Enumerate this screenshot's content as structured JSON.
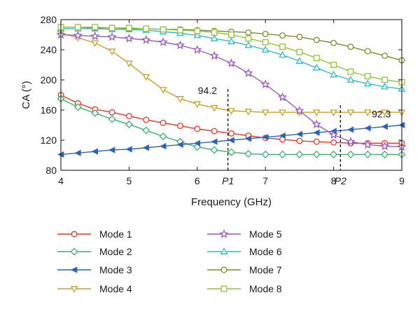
{
  "chart_data": {
    "type": "line",
    "xlabel": "Frequency (GHz)",
    "ylabel": "CA (°)",
    "xlim": [
      4,
      9
    ],
    "ylim": [
      80,
      280
    ],
    "xticks": [
      4,
      5,
      6,
      7,
      8,
      9
    ],
    "yticks": [
      80,
      120,
      160,
      200,
      240,
      280
    ],
    "grid": false,
    "legend_position": "bottom, two columns",
    "annotations": [
      {
        "text": "94.2",
        "x": 6.15,
        "y": 186
      },
      {
        "text": "92.3",
        "x": 8.7,
        "y": 155
      }
    ],
    "vlines": [
      {
        "label": "P1",
        "x": 6.45
      },
      {
        "label": "P2",
        "x": 8.1
      }
    ],
    "x": [
      4.0,
      4.25,
      4.5,
      4.75,
      5.0,
      5.25,
      5.5,
      5.75,
      6.0,
      6.25,
      6.5,
      6.75,
      7.0,
      7.25,
      7.5,
      7.75,
      8.0,
      8.25,
      8.5,
      8.75,
      9.0
    ],
    "series": [
      {
        "name": "Mode 1",
        "color": "#e8372b",
        "marker": "circle",
        "values": [
          180,
          169,
          161,
          157,
          152,
          147,
          143,
          139,
          135,
          132,
          129,
          126,
          123,
          121,
          119,
          118,
          117,
          116,
          116,
          116,
          116
        ]
      },
      {
        "name": "Mode 2",
        "color": "#3fae6e",
        "marker": "diamond",
        "values": [
          175,
          164,
          156,
          148,
          141,
          133,
          125,
          118,
          111,
          107,
          104,
          102,
          101,
          101,
          101,
          101,
          101,
          101,
          101,
          101,
          101
        ]
      },
      {
        "name": "Mode 3",
        "color": "#2e62b8",
        "marker": "triangle-left",
        "values": [
          101,
          103,
          105,
          107,
          108,
          110,
          112,
          114,
          116,
          118,
          120,
          122,
          124,
          126,
          128,
          130,
          132,
          134,
          136,
          138,
          140
        ]
      },
      {
        "name": "Mode 4",
        "color": "#c9a028",
        "marker": "triangle-down",
        "values": [
          262,
          256,
          249,
          238,
          222,
          204,
          187,
          175,
          168,
          163,
          159,
          158,
          157,
          157,
          157,
          157,
          157,
          157,
          157,
          157,
          157
        ]
      },
      {
        "name": "Mode 5",
        "color": "#9b59c0",
        "marker": "star",
        "values": [
          260,
          259,
          258,
          257,
          255,
          253,
          250,
          246,
          240,
          232,
          222,
          209,
          194,
          177,
          159,
          141,
          127,
          118,
          114,
          112,
          111
        ]
      },
      {
        "name": "Mode 6",
        "color": "#35b8cc",
        "marker": "triangle-up",
        "values": [
          268,
          268,
          268,
          267,
          267,
          266,
          264,
          262,
          259,
          255,
          251,
          246,
          240,
          233,
          225,
          216,
          207,
          200,
          195,
          191,
          188
        ]
      },
      {
        "name": "Mode 7",
        "color": "#7e8a2a",
        "marker": "circle",
        "values": [
          270,
          270,
          269,
          269,
          268,
          268,
          267,
          267,
          266,
          265,
          264,
          263,
          261,
          259,
          257,
          253,
          249,
          244,
          238,
          232,
          226
        ]
      },
      {
        "name": "Mode 8",
        "color": "#8fc43c",
        "marker": "square",
        "values": [
          270,
          270,
          270,
          269,
          269,
          268,
          267,
          266,
          265,
          263,
          260,
          255,
          250,
          244,
          237,
          229,
          220,
          211,
          205,
          200,
          197
        ]
      }
    ]
  }
}
